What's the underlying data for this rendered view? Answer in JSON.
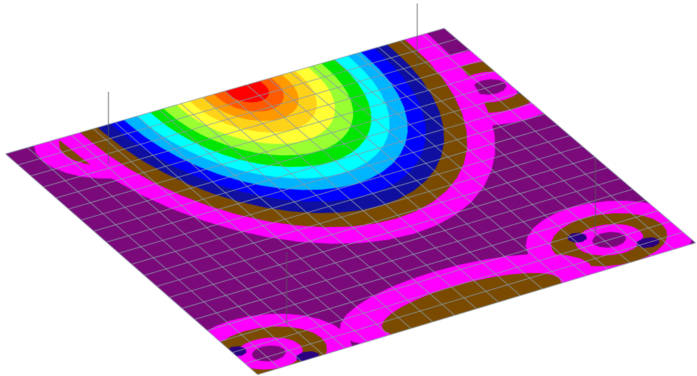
{
  "view": {
    "background": "#ffffff",
    "grid_line_color": "#8a9aa6",
    "column_line_color": "#555555"
  },
  "legend_colors": {
    "max": "#ff0000",
    "level_9": "#ff5a00",
    "level_8": "#ff9900",
    "level_7": "#ffd21a",
    "level_6": "#ffff33",
    "level_5": "#99ff33",
    "level_4": "#00e600",
    "level_3": "#00ffff",
    "level_2": "#00b4ff",
    "level_1": "#0000ff",
    "level_0": "#1010a0",
    "neg_1": "#7a4a00",
    "neg_2": "#ff00ff",
    "neg_3": "#7a0a7a",
    "min": "#2a0080"
  },
  "mesh": {
    "divisions_u": 20,
    "divisions_v": 20
  },
  "supports": [
    "column-support-top-left",
    "column-support-top-right",
    "column-support-bottom-left",
    "column-support-bottom-right"
  ]
}
